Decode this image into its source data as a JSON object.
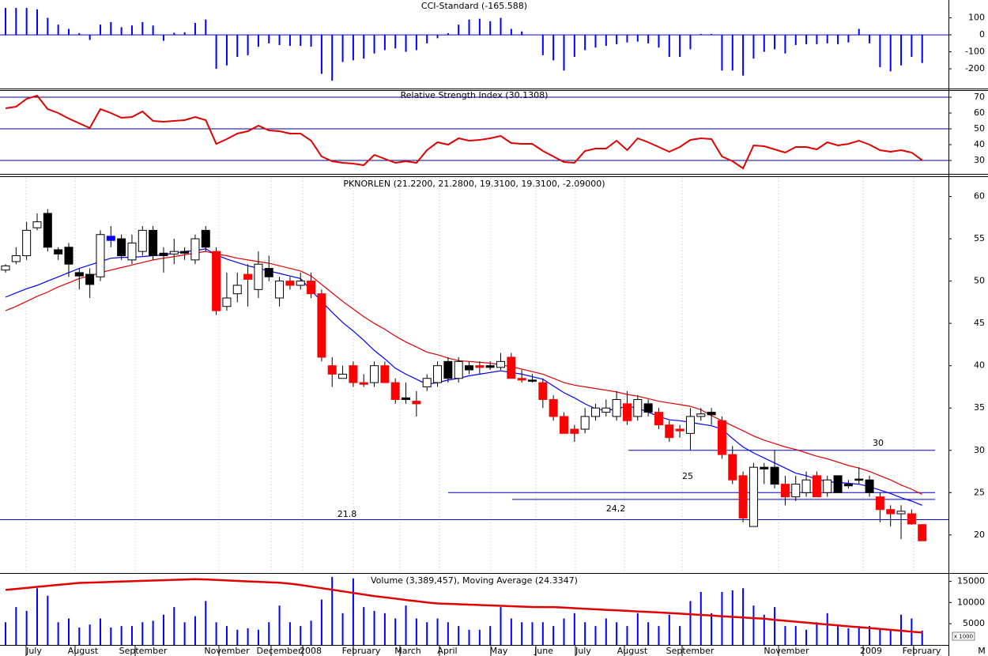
{
  "chart_data": [
    {
      "type": "bar",
      "title": "CCI-Standard (-165.588)",
      "color": "#0000ff",
      "values": [
        158,
        158,
        158,
        150,
        100,
        60,
        35,
        10,
        -30,
        60,
        75,
        45,
        55,
        75,
        55,
        -35,
        12,
        15,
        70,
        90,
        -200,
        -180,
        -130,
        -120,
        -70,
        -50,
        -60,
        -65,
        -65,
        -70,
        -230,
        -270,
        -160,
        -150,
        -140,
        -110,
        -90,
        -80,
        -100,
        -90,
        -50,
        -20,
        10,
        60,
        90,
        95,
        80,
        100,
        35,
        20,
        0,
        -120,
        -150,
        -210,
        -130,
        -90,
        -75,
        -65,
        -55,
        -45,
        -40,
        -50,
        -75,
        -130,
        -130,
        -85,
        5,
        5,
        -210,
        -210,
        -240,
        -140,
        -100,
        -85,
        -110,
        -60,
        -55,
        -55,
        -50,
        -55,
        -45,
        35,
        -50,
        -190,
        -215,
        -180,
        -130,
        -165.588
      ],
      "ylim": [
        -316,
        205
      ],
      "yticks": [
        100,
        0,
        -100,
        -200
      ],
      "reference_lines": [
        0
      ],
      "reference_color": "#0000ff"
    },
    {
      "type": "line",
      "title": "Relative Strength Index (30.1308)",
      "color": "#e00000",
      "values": [
        63,
        64,
        69,
        71,
        62.5,
        60,
        56.5,
        53.5,
        50.5,
        62.5,
        60,
        57,
        57.5,
        61,
        55,
        54.5,
        55,
        55.5,
        57.5,
        55.5,
        40.5,
        43.5,
        47,
        48.5,
        52,
        49,
        48.5,
        47,
        47,
        42.5,
        32.5,
        29.5,
        28.5,
        28,
        27,
        33.5,
        31,
        28.5,
        29.5,
        28.5,
        36.5,
        41.5,
        40,
        44,
        42.5,
        43,
        44,
        45.5,
        41,
        40.5,
        40.5,
        36,
        32.5,
        29,
        28.5,
        36,
        37.5,
        37.5,
        42.5,
        36.5,
        44,
        41.5,
        38.5,
        35.5,
        38.5,
        43,
        44,
        43.5,
        32.5,
        29.5,
        25,
        39.5,
        39,
        37,
        35,
        38.5,
        38.5,
        37,
        41.5,
        39.5,
        40.5,
        42.5,
        40,
        36.5,
        35.5,
        36.5,
        35,
        30.1308
      ],
      "ylim": [
        21.5,
        74.5
      ],
      "yticks": [
        70,
        60,
        50,
        40,
        30
      ],
      "reference_lines": [
        70,
        50,
        30
      ],
      "reference_color": "#000080"
    },
    {
      "type": "candlestick",
      "title": "PKNORLEN (21.2200, 21.2800, 19.3100, 19.3100, -2.09000)",
      "open": [
        51.3,
        52.3,
        53,
        56.3,
        58,
        53.7,
        54,
        51,
        50.8,
        50.5,
        55.3,
        55,
        52.5,
        53.5,
        56,
        53.3,
        53.2,
        53.5,
        52.5,
        56,
        53.5,
        47,
        48.5,
        50.8,
        49,
        51.5,
        48,
        50,
        49.5,
        50,
        48.5,
        40,
        38.5,
        40,
        38,
        38,
        40,
        38,
        36.2,
        35.8,
        37.5,
        38,
        40.5,
        38.5,
        40,
        40,
        40,
        39.8,
        41,
        38.5,
        38.3,
        38,
        36,
        34,
        32.5,
        32.5,
        34,
        34.5,
        34,
        35.5,
        34,
        35.5,
        34.5,
        33,
        32.5,
        32,
        34,
        34.5,
        33.5,
        29.5,
        27,
        21,
        28,
        28,
        26,
        24.5,
        25,
        27,
        25,
        27,
        26,
        26.6,
        26.5,
        24.5,
        23,
        22.5,
        22.5,
        21.22
      ],
      "high": [
        52,
        54,
        57,
        58,
        58.5,
        54,
        54.5,
        51.5,
        51.5,
        56,
        56.5,
        55.5,
        55.5,
        56.5,
        56.5,
        54,
        55,
        54,
        55.5,
        56.5,
        54,
        51,
        51,
        52,
        53.5,
        53,
        50.5,
        50.5,
        51,
        51,
        49,
        41,
        40,
        40.5,
        39,
        40.5,
        40.5,
        38.5,
        38,
        37,
        39,
        40.5,
        41,
        41,
        40.5,
        40.5,
        40.5,
        41.5,
        41.5,
        39.5,
        39,
        38.5,
        36.5,
        34.5,
        33,
        35,
        35.5,
        36,
        37,
        37,
        36.5,
        36,
        35,
        33.5,
        33,
        35,
        35,
        35,
        34,
        30.5,
        27.5,
        28.5,
        28.5,
        30,
        27,
        27,
        27.5,
        27.5,
        27,
        27,
        26.5,
        28,
        27,
        25,
        23.5,
        23.5,
        23,
        21.28
      ],
      "low": [
        51,
        52,
        52.5,
        56,
        53.5,
        52.5,
        50.5,
        49,
        48,
        50,
        54,
        52.5,
        52,
        53,
        52.5,
        51,
        52,
        52.5,
        52,
        53.5,
        46,
        46.5,
        47.5,
        47,
        48,
        50,
        47,
        49,
        49,
        48,
        40.5,
        37.5,
        38.5,
        37.5,
        37.5,
        37.5,
        38,
        35.5,
        35.5,
        34,
        37,
        37.5,
        38,
        38,
        39,
        39,
        39.5,
        39.5,
        38.5,
        38,
        38,
        35,
        33.5,
        32,
        31,
        32,
        33.5,
        34,
        33.5,
        33,
        33.5,
        34,
        32.5,
        31,
        31.5,
        30,
        33.5,
        33,
        29,
        26,
        21.5,
        21,
        26,
        25.5,
        23.5,
        24,
        24.5,
        24.5,
        24.5,
        25,
        25.5,
        26,
        24.5,
        21.5,
        21,
        19.5,
        21.2,
        19.31
      ],
      "close": [
        51.8,
        53,
        56,
        57,
        54,
        53.2,
        52,
        50.6,
        49.6,
        55.5,
        54.8,
        53,
        54.5,
        56,
        53,
        53,
        53.5,
        53.3,
        55,
        54,
        46.5,
        48,
        49.5,
        50.2,
        52,
        50.5,
        50,
        49.5,
        50,
        48.5,
        41,
        39,
        39,
        38,
        37.8,
        40,
        38,
        36,
        36,
        35.5,
        38.5,
        40,
        38.5,
        40.5,
        39.5,
        39.8,
        39.8,
        40.5,
        38.5,
        38.3,
        38.2,
        36,
        34,
        32,
        32,
        34,
        35,
        35,
        36,
        33.5,
        36,
        34.5,
        33,
        31.5,
        32.3,
        34,
        34.3,
        34.2,
        29.5,
        26.5,
        22,
        28,
        27.8,
        26,
        24.5,
        26,
        26.5,
        24.5,
        26.5,
        25,
        25.8,
        26.5,
        25,
        23,
        22.5,
        22.8,
        21.3,
        19.31
      ],
      "candle_colors": [
        "white",
        "white",
        "white",
        "white",
        "black",
        "black",
        "black",
        "black",
        "black",
        "white",
        "blue",
        "black",
        "white",
        "white",
        "black",
        "black",
        "white",
        "black",
        "white",
        "black",
        "red",
        "white",
        "white",
        "red",
        "white",
        "black",
        "white",
        "red",
        "white",
        "red",
        "red",
        "red",
        "white",
        "red",
        "red",
        "white",
        "red",
        "red",
        "black",
        "red",
        "white",
        "white",
        "black",
        "white",
        "black",
        "red",
        "black",
        "white",
        "red",
        "red",
        "black",
        "red",
        "red",
        "red",
        "red",
        "white",
        "white",
        "white",
        "white",
        "red",
        "white",
        "black",
        "red",
        "red",
        "red",
        "white",
        "white",
        "black",
        "red",
        "red",
        "red",
        "white",
        "black",
        "black",
        "red",
        "white",
        "white",
        "red",
        "white",
        "black",
        "black",
        "black",
        "black",
        "red",
        "red",
        "white",
        "red",
        "red"
      ],
      "series": [
        {
          "color": "#0000ff",
          "values": [
            48.1,
            48.6,
            49.1,
            49.5,
            50.0,
            50.5,
            51.0,
            51.5,
            51.9,
            52.3,
            52.7,
            52.8,
            52.8,
            52.9,
            53.0,
            53.1,
            53.3,
            53.5,
            53.6,
            53.8,
            53.1,
            52.6,
            52.2,
            51.8,
            51.5,
            51.2,
            50.9,
            50.6,
            50.3,
            48.9,
            47.6,
            46.3,
            45.1,
            44.1,
            43.0,
            41.8,
            40.8,
            39.7,
            39.0,
            38.4,
            37.8,
            38.0,
            38.3,
            38.5,
            38.8,
            39.0,
            39.2,
            39.4,
            39.2,
            39.0,
            38.7,
            38.4,
            37.6,
            36.8,
            36.2,
            35.5,
            34.9,
            34.7,
            34.9,
            35.2,
            35.0,
            34.5,
            34.0,
            33.6,
            33.5,
            33.3,
            33.1,
            32.9,
            32.5,
            31.4,
            30.4,
            29.7,
            29.1,
            28.5,
            27.9,
            27.3,
            27.0,
            26.6,
            26.3,
            26.2,
            26.1,
            26.0,
            25.7,
            25.3,
            24.9,
            24.4,
            24.0,
            23.5
          ]
        },
        {
          "color": "#e00000",
          "values": [
            46.5,
            47.0,
            47.6,
            48.2,
            48.7,
            49.3,
            49.8,
            50.3,
            50.6,
            51.0,
            51.3,
            51.6,
            51.9,
            52.2,
            52.5,
            52.7,
            52.9,
            53.1,
            53.3,
            53.5,
            53.2,
            53.0,
            52.7,
            52.5,
            52.3,
            52.1,
            51.8,
            51.5,
            51.2,
            50.6,
            49.6,
            48.6,
            47.6,
            46.7,
            45.8,
            45.0,
            44.3,
            43.5,
            42.8,
            42.2,
            41.6,
            41.3,
            40.9,
            40.6,
            40.5,
            40.4,
            40.3,
            40.1,
            39.9,
            39.6,
            39.3,
            39.0,
            38.5,
            38.0,
            37.7,
            37.5,
            37.3,
            37.1,
            36.9,
            36.6,
            36.4,
            36.1,
            35.8,
            35.6,
            35.4,
            35.2,
            34.8,
            34.1,
            33.5,
            32.9,
            32.3,
            31.7,
            31.2,
            30.8,
            30.4,
            30.1,
            29.7,
            29.3,
            29.0,
            28.6,
            28.2,
            27.9,
            27.5,
            27.0,
            26.5,
            25.9,
            25.4,
            24.8
          ]
        }
      ],
      "annotations": [
        {
          "label": "30",
          "value": 30
        },
        {
          "label": "25",
          "value": 25
        },
        {
          "label": "24,2",
          "value": 24.2
        },
        {
          "label": "21.8",
          "value": 21.8
        }
      ],
      "annotation_color": "#0000cc",
      "ylim": [
        15.5,
        62.2
      ],
      "yticks": [
        60,
        55,
        50,
        45,
        40,
        35,
        30,
        25,
        20
      ]
    },
    {
      "type": "volume",
      "title": "Volume (3,389,457), Moving Average (24.3347)",
      "color": "#0000ff",
      "values": [
        5360,
        8930,
        8040,
        13390,
        11610,
        5360,
        6250,
        4110,
        4820,
        6250,
        4110,
        4460,
        4460,
        5360,
        5710,
        7140,
        8930,
        5360,
        6790,
        10360,
        5360,
        4460,
        3570,
        3930,
        3570,
        5360,
        9290,
        5360,
        4460,
        5710,
        10710,
        16070,
        7500,
        15710,
        8930,
        8040,
        7500,
        6250,
        9290,
        6250,
        5360,
        6250,
        5360,
        4460,
        3570,
        3570,
        4460,
        8930,
        6250,
        5360,
        5360,
        5360,
        4460,
        6250,
        7500,
        5360,
        4460,
        6250,
        5360,
        4460,
        7500,
        5360,
        4460,
        7140,
        4460,
        10360,
        12500,
        7500,
        12500,
        12860,
        13390,
        9290,
        7140,
        8930,
        4460,
        4460,
        3570,
        5360,
        7500,
        4460,
        3930,
        4460,
        4460,
        3570,
        3570,
        7140,
        6250,
        3389.457
      ],
      "series": [
        {
          "color": "#e00000",
          "values": [
            12980,
            13220,
            13450,
            13700,
            13930,
            14180,
            14410,
            14640,
            14720,
            14800,
            14880,
            14960,
            15030,
            15120,
            15210,
            15280,
            15360,
            15440,
            15520,
            15460,
            15340,
            15220,
            15110,
            14990,
            14910,
            14800,
            14690,
            14450,
            14150,
            13760,
            13390,
            13030,
            12640,
            12270,
            11900,
            11520,
            11230,
            10930,
            10620,
            10330,
            10040,
            9800,
            9700,
            9610,
            9510,
            9420,
            9330,
            9230,
            9140,
            9050,
            8960,
            8930,
            8930,
            8800,
            8670,
            8550,
            8420,
            8290,
            8170,
            8040,
            7910,
            7790,
            7660,
            7530,
            7390,
            7230,
            7080,
            6930,
            6770,
            6630,
            6480,
            6320,
            6210,
            5920,
            5700,
            5480,
            5270,
            5040,
            4830,
            4620,
            4390,
            4190,
            3990,
            3770,
            3560,
            3360,
            3140,
            2940
          ]
        }
      ],
      "ylim": [
        0,
        16600
      ],
      "yticks": [
        15000,
        10000,
        5000
      ],
      "unit_label": "x 1000",
      "x_labels": [
        "July",
        "August",
        "September",
        "November",
        "December",
        "2008",
        "February",
        "March",
        "April",
        "May",
        "June",
        "July",
        "August",
        "September",
        "November",
        "2009",
        "February",
        "M"
      ]
    }
  ]
}
